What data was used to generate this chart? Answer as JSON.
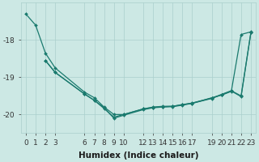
{
  "xlabel": "Humidex (Indice chaleur)",
  "bg_color": "#cce8e4",
  "grid_color": "#aacfcc",
  "line_color": "#1a7a6e",
  "x_ticks": [
    0,
    1,
    2,
    3,
    6,
    7,
    8,
    9,
    10,
    12,
    13,
    14,
    15,
    16,
    17,
    19,
    20,
    21,
    22,
    23
  ],
  "ylim": [
    -20.5,
    -17.0
  ],
  "yticks": [
    -20,
    -19,
    -18
  ],
  "xlim": [
    -0.5,
    23.5
  ],
  "tick_fontsize": 6.5,
  "label_fontsize": 7.5,
  "line1_x": [
    0,
    1,
    2,
    3,
    6,
    7,
    8,
    9,
    10,
    12,
    13,
    14,
    15,
    16,
    17,
    19,
    20,
    21,
    22,
    23
  ],
  "line1_y": [
    -17.3,
    -17.6,
    -18.35,
    -18.75,
    -19.4,
    -19.55,
    -19.8,
    -20.0,
    -20.0,
    -19.85,
    -19.8,
    -19.78,
    -19.78,
    -19.73,
    -19.7,
    -19.55,
    -19.48,
    -19.38,
    -17.85,
    -17.78
  ],
  "line2_x": [
    2,
    3,
    6,
    7,
    8,
    9,
    10,
    12,
    13,
    14,
    15,
    16,
    17,
    19,
    20,
    21,
    22,
    23
  ],
  "line2_y": [
    -18.55,
    -18.87,
    -19.45,
    -19.62,
    -19.82,
    -20.1,
    -20.02,
    -19.87,
    -19.82,
    -19.8,
    -19.79,
    -19.75,
    -19.7,
    -19.57,
    -19.47,
    -19.37,
    -19.52,
    -17.8
  ],
  "line3_x": [
    2,
    3,
    6,
    7,
    8,
    9,
    10,
    12,
    13,
    14,
    15,
    16,
    17,
    19,
    20,
    21,
    22,
    23
  ],
  "line3_y": [
    -18.55,
    -18.87,
    -19.45,
    -19.62,
    -19.84,
    -20.07,
    -20.0,
    -19.85,
    -19.81,
    -19.79,
    -19.78,
    -19.74,
    -19.69,
    -19.56,
    -19.46,
    -19.36,
    -19.5,
    -17.8
  ]
}
